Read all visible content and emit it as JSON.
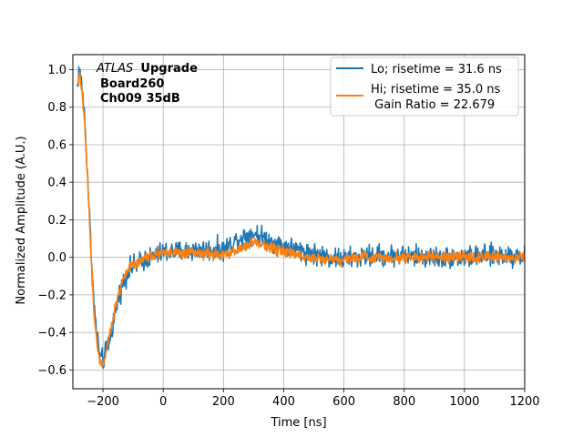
{
  "chart_data": {
    "type": "line",
    "xlabel": "Time [ns]",
    "ylabel": "Normalized Amplitude (A.U.)",
    "xlim": [
      -300,
      1200
    ],
    "ylim": [
      -0.7,
      1.08
    ],
    "xticks": [
      -200,
      0,
      200,
      400,
      600,
      800,
      1000,
      1200
    ],
    "yticks": [
      -0.6,
      -0.4,
      -0.2,
      0.0,
      0.2,
      0.4,
      0.6,
      0.8,
      1.0
    ],
    "xtick_labels": [
      "−200",
      "0",
      "200",
      "400",
      "600",
      "800",
      "1000",
      "1200"
    ],
    "ytick_labels": [
      "−0.6",
      "−0.4",
      "−0.2",
      "0.0",
      "0.2",
      "0.4",
      "0.6",
      "0.8",
      "1.0"
    ],
    "grid": true,
    "legend_position": "top-right",
    "annotation": {
      "atlas": "ATLAS",
      "upgrade": "Upgrade",
      "line2": "Board260",
      "line3": "Ch009 35dB"
    },
    "series": [
      {
        "name": "Lo; risetime = 31.6 ns",
        "color": "#1f77b4",
        "noise": 0.035,
        "x": [
          -285,
          -280,
          -270,
          -260,
          -250,
          -240,
          -230,
          -220,
          -210,
          -200,
          -190,
          -180,
          -170,
          -160,
          -150,
          -140,
          -130,
          -120,
          -110,
          -100,
          -80,
          -60,
          -40,
          -20,
          0,
          50,
          100,
          150,
          200,
          250,
          300,
          350,
          400,
          450,
          500,
          550,
          600,
          650,
          700,
          800,
          900,
          1000,
          1100,
          1200
        ],
        "y": [
          0.9,
          1.0,
          0.92,
          0.72,
          0.4,
          0.05,
          -0.25,
          -0.42,
          -0.53,
          -0.55,
          -0.5,
          -0.45,
          -0.38,
          -0.3,
          -0.22,
          -0.17,
          -0.12,
          -0.08,
          -0.06,
          -0.05,
          -0.03,
          -0.01,
          0.0,
          0.01,
          0.03,
          0.03,
          0.04,
          0.04,
          0.04,
          0.1,
          0.13,
          0.09,
          0.06,
          0.04,
          0.02,
          0.0,
          -0.01,
          0.0,
          0.01,
          0.01,
          0.0,
          0.0,
          0.01,
          0.01
        ]
      },
      {
        "name": "Hi; risetime = 35.0 ns",
        "name2": " Gain Ratio = 22.679",
        "color": "#ff7f0e",
        "noise": 0.018,
        "x": [
          -285,
          -280,
          -270,
          -260,
          -250,
          -240,
          -230,
          -220,
          -210,
          -200,
          -190,
          -180,
          -170,
          -160,
          -150,
          -140,
          -130,
          -120,
          -110,
          -100,
          -80,
          -60,
          -40,
          -20,
          0,
          50,
          100,
          150,
          200,
          250,
          300,
          350,
          400,
          450,
          500,
          550,
          600,
          650,
          700,
          800,
          900,
          1000,
          1100,
          1200
        ],
        "y": [
          0.92,
          0.98,
          0.9,
          0.7,
          0.38,
          0.02,
          -0.28,
          -0.46,
          -0.55,
          -0.57,
          -0.5,
          -0.42,
          -0.35,
          -0.27,
          -0.2,
          -0.15,
          -0.1,
          -0.07,
          -0.05,
          -0.04,
          -0.02,
          0.0,
          0.01,
          0.02,
          0.03,
          0.02,
          0.02,
          0.02,
          0.01,
          0.04,
          0.08,
          0.06,
          0.03,
          0.01,
          0.0,
          -0.01,
          -0.01,
          0.0,
          0.0,
          0.0,
          0.0,
          0.0,
          0.0,
          0.0
        ]
      }
    ]
  }
}
